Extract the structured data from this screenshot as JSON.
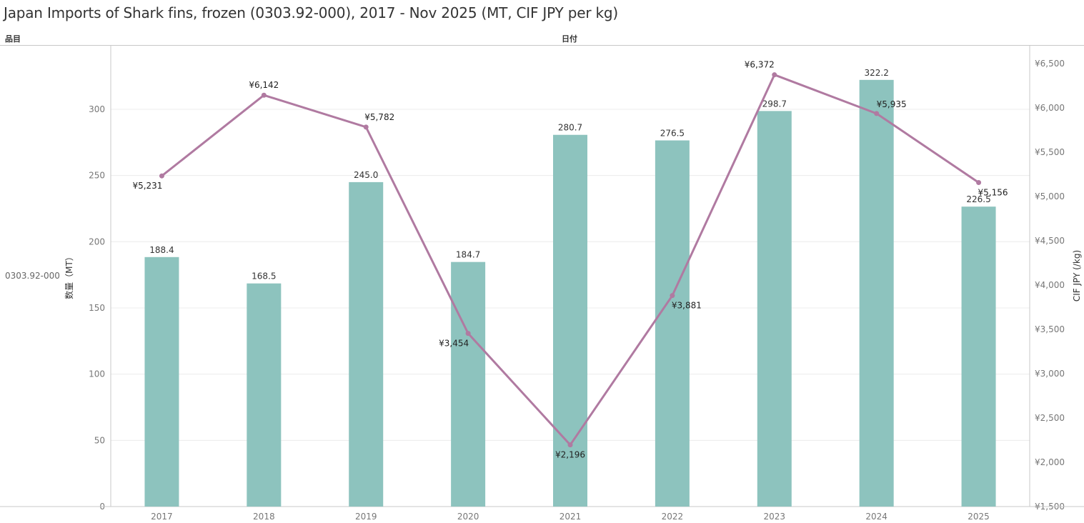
{
  "title": "Japan Imports of Shark fins, frozen (0303.92-000), 2017 - Nov 2025 (MT, CIF JPY per kg)",
  "row_header": "品目",
  "col_header": "日付",
  "row_value": "0303.92-000",
  "chart_data": {
    "type": "bar",
    "categories": [
      "2017",
      "2018",
      "2019",
      "2020",
      "2021",
      "2022",
      "2023",
      "2024",
      "2025"
    ],
    "series": [
      {
        "type": "bar",
        "axis": "left",
        "values": [
          188.4,
          168.5,
          245.0,
          184.7,
          280.7,
          276.5,
          298.7,
          322.2,
          226.5
        ],
        "labels": [
          "188.4",
          "168.5",
          "245.0",
          "184.7",
          "280.7",
          "276.5",
          "298.7",
          "322.2",
          "226.5"
        ],
        "color": "#8dc3be"
      },
      {
        "type": "line",
        "axis": "right",
        "values": [
          5231,
          6142,
          5782,
          3454,
          2196,
          3881,
          6372,
          5935,
          5156
        ],
        "labels": [
          "¥5,231",
          "¥6,142",
          "¥5,782",
          "¥3,454",
          "¥2,196",
          "¥3,881",
          "¥6,372",
          "¥5,935",
          "¥5,156"
        ],
        "color": "#b07aa1"
      }
    ],
    "ylabel_left": "数量（MT）",
    "ylabel_right": "CIF JPY (/kg)",
    "ylim_left": [
      0,
      348
    ],
    "ylim_right": [
      1500,
      6700
    ],
    "yticks_left": [
      "0",
      "50",
      "100",
      "150",
      "200",
      "250",
      "300"
    ],
    "yticks_right": [
      "¥1,500",
      "¥2,000",
      "¥2,500",
      "¥3,000",
      "¥3,500",
      "¥4,000",
      "¥4,500",
      "¥5,000",
      "¥5,500",
      "¥6,000",
      "¥6,500"
    ],
    "grid": true
  }
}
